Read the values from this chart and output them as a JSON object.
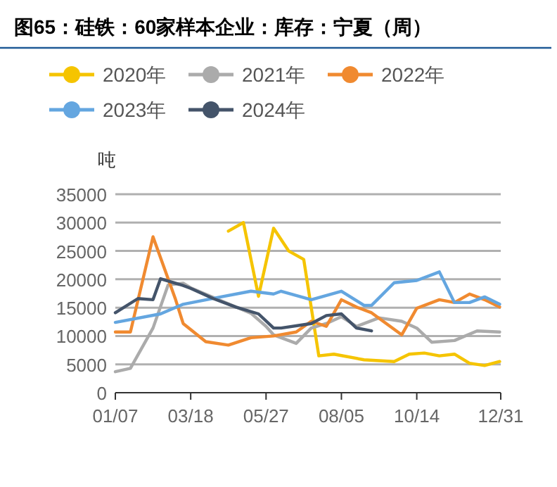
{
  "chart_data": {
    "type": "line",
    "title": "图65：硅铁：60家样本企业：库存：宁夏（周）",
    "ylabel": "吨",
    "xlim": [
      "--01-07",
      "--12-31"
    ],
    "xticks": [
      {
        "value": "--01-07",
        "label": "01/07"
      },
      {
        "value": "--03-18",
        "label": "03/18"
      },
      {
        "value": "--05-27",
        "label": "05/27"
      },
      {
        "value": "--08-05",
        "label": "08/05"
      },
      {
        "value": "--10-14",
        "label": "10/14"
      },
      {
        "value": "--12-31",
        "label": "12/31"
      }
    ],
    "ylim": [
      0,
      35000
    ],
    "yticks": [
      0,
      5000,
      10000,
      15000,
      20000,
      25000,
      30000,
      35000
    ],
    "grid": "y",
    "legend": "top",
    "series": [
      {
        "name": "2020年",
        "color": "#f5c400",
        "x": [
          "--04-22",
          "--05-06",
          "--05-20",
          "--06-03",
          "--06-17",
          "--07-01",
          "--07-15",
          "--07-29",
          "--08-26",
          "--09-23",
          "--10-07",
          "--10-21",
          "--11-04",
          "--11-18",
          "--12-02",
          "--12-16",
          "--12-30"
        ],
        "values": [
          28500,
          30000,
          17000,
          29000,
          25000,
          23500,
          6500,
          6800,
          5800,
          5500,
          6800,
          7000,
          6500,
          6800,
          5200,
          4800,
          5500
        ]
      },
      {
        "name": "2021年",
        "color": "#ababab",
        "x": [
          "--01-07",
          "--01-21",
          "--02-11",
          "--02-25",
          "--03-11",
          "--03-18",
          "--05-13",
          "--05-27",
          "--06-03",
          "--06-24",
          "--07-08",
          "--07-22",
          "--08-05",
          "--08-19",
          "--09-09",
          "--09-30",
          "--10-14",
          "--10-28",
          "--11-18",
          "--12-09",
          "--12-30"
        ],
        "values": [
          3700,
          4300,
          11400,
          19000,
          19300,
          18500,
          14000,
          11700,
          10200,
          8700,
          11400,
          12200,
          13400,
          11700,
          13200,
          12600,
          11400,
          8900,
          9200,
          10900,
          10700
        ]
      },
      {
        "name": "2022年",
        "color": "#f08a30",
        "x": [
          "--01-07",
          "--01-21",
          "--02-11",
          "--03-04",
          "--03-11",
          "--04-01",
          "--04-22",
          "--05-13",
          "--06-03",
          "--06-24",
          "--07-08",
          "--07-22",
          "--08-05",
          "--08-19",
          "--09-02",
          "--09-30",
          "--10-14",
          "--11-04",
          "--11-18",
          "--12-02",
          "--12-16",
          "--12-30"
        ],
        "values": [
          10700,
          10700,
          27500,
          16400,
          12200,
          9000,
          8400,
          9700,
          10000,
          10700,
          12600,
          11700,
          16400,
          15100,
          14100,
          10200,
          14900,
          16400,
          15900,
          17400,
          16400,
          15100
        ]
      },
      {
        "name": "2023年",
        "color": "#64a6e0",
        "x": [
          "--01-07",
          "--02-18",
          "--03-11",
          "--04-15",
          "--05-13",
          "--06-03",
          "--06-10",
          "--07-08",
          "--08-05",
          "--08-26",
          "--09-02",
          "--09-23",
          "--10-14",
          "--11-04",
          "--11-18",
          "--12-02",
          "--12-16",
          "--12-30"
        ],
        "values": [
          12400,
          13900,
          15600,
          16900,
          17900,
          17400,
          17900,
          16400,
          17900,
          15400,
          15400,
          19400,
          19800,
          21300,
          15900,
          15900,
          16900,
          15600
        ]
      },
      {
        "name": "2024年",
        "color": "#44546a",
        "x": [
          "--01-07",
          "--01-28",
          "--02-11",
          "--02-18",
          "--03-11",
          "--03-18",
          "--04-08",
          "--04-29",
          "--05-20",
          "--06-03",
          "--06-10",
          "--07-08",
          "--07-22",
          "--08-05",
          "--08-19",
          "--09-02"
        ],
        "values": [
          14100,
          16600,
          16400,
          20100,
          18900,
          18400,
          16600,
          15100,
          13900,
          11400,
          11400,
          12200,
          13600,
          13900,
          11400,
          10900
        ]
      }
    ]
  }
}
